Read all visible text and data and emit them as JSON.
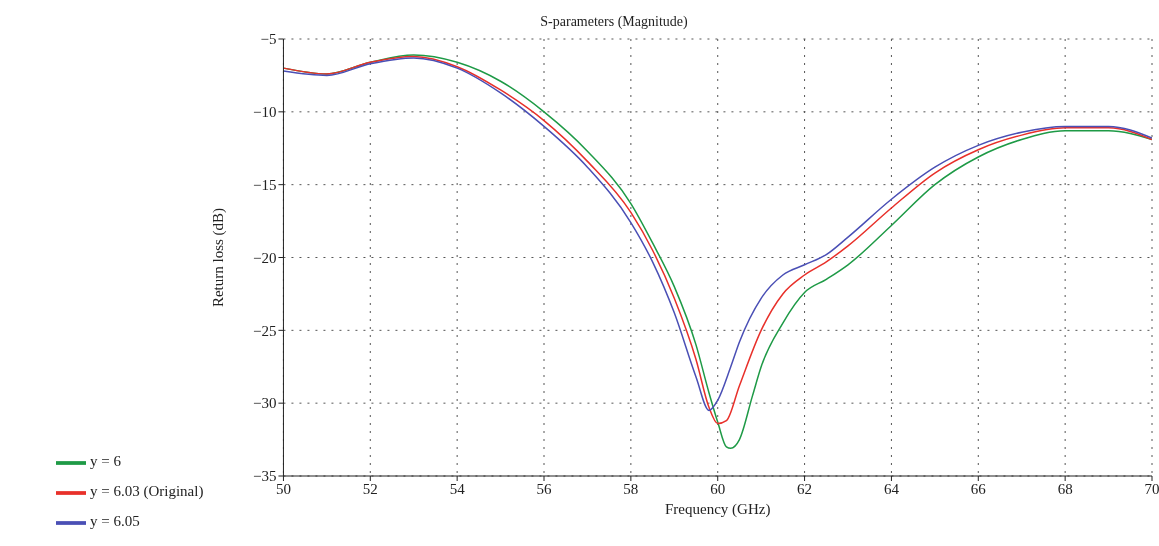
{
  "chart_data": {
    "type": "line",
    "title": "S-parameters (Magnitude)",
    "xlabel": "Frequency (GHz)",
    "ylabel": "Return loss (dB)",
    "xlim": [
      50,
      70
    ],
    "xticks": [
      50,
      52,
      54,
      56,
      58,
      60,
      62,
      64,
      66,
      68,
      70
    ],
    "ylim": [
      -35,
      -5
    ],
    "yticks": [
      -35,
      -30,
      -25,
      -20,
      -15,
      -10,
      -5
    ],
    "grid": true,
    "legend": "bottom left",
    "marker": "none",
    "line_style": "solid",
    "series": [
      {
        "name": "y = 6",
        "color": "#1e9a46",
        "x": [
          50,
          51,
          52,
          53,
          54,
          55,
          56,
          57,
          58,
          58.5,
          59,
          59.5,
          59.8,
          60,
          60.2,
          60.3,
          60.5,
          60.8,
          61,
          61.5,
          62,
          62.5,
          63,
          64,
          65,
          66,
          67,
          68,
          69,
          70
        ],
        "values": [
          -7.0,
          -7.4,
          -6.6,
          -6.1,
          -6.6,
          -7.9,
          -10.0,
          -12.7,
          -16.3,
          -19.0,
          -22.0,
          -26.0,
          -29.3,
          -31.3,
          -33.0,
          -33.1,
          -32.5,
          -29.5,
          -27.5,
          -24.5,
          -22.4,
          -21.5,
          -20.5,
          -17.8,
          -15.0,
          -13.1,
          -11.9,
          -11.3,
          -11.3,
          -11.9
        ]
      },
      {
        "name": "y = 6.03 (Original)",
        "color": "#e8302a",
        "x": [
          50,
          51,
          52,
          53,
          54,
          55,
          56,
          57,
          58,
          58.5,
          59,
          59.5,
          59.8,
          60,
          60.2,
          60.5,
          61,
          61.5,
          62,
          62.5,
          63,
          64,
          65,
          66,
          67,
          68,
          69,
          70
        ],
        "values": [
          -7.0,
          -7.4,
          -6.6,
          -6.2,
          -6.9,
          -8.5,
          -10.6,
          -13.4,
          -16.9,
          -19.5,
          -22.8,
          -27.0,
          -30.3,
          -31.4,
          -31.2,
          -28.8,
          -25.0,
          -22.5,
          -21.2,
          -20.3,
          -19.2,
          -16.6,
          -14.2,
          -12.6,
          -11.6,
          -11.1,
          -11.1,
          -11.9
        ]
      },
      {
        "name": "y = 6.05",
        "color": "#4a4fb5",
        "x": [
          50,
          51,
          52,
          53,
          54,
          55,
          56,
          57,
          58,
          58.5,
          59,
          59.5,
          59.8,
          60,
          60.3,
          60.5,
          61,
          61.5,
          62,
          62.5,
          63,
          64,
          65,
          66,
          67,
          68,
          69,
          70
        ],
        "values": [
          -7.2,
          -7.5,
          -6.7,
          -6.3,
          -7.0,
          -8.7,
          -11.0,
          -13.8,
          -17.6,
          -20.3,
          -23.8,
          -28.2,
          -30.5,
          -29.8,
          -27.5,
          -25.8,
          -22.8,
          -21.2,
          -20.5,
          -19.8,
          -18.6,
          -16.0,
          -13.8,
          -12.3,
          -11.4,
          -11.0,
          -11.0,
          -11.8
        ]
      }
    ]
  }
}
